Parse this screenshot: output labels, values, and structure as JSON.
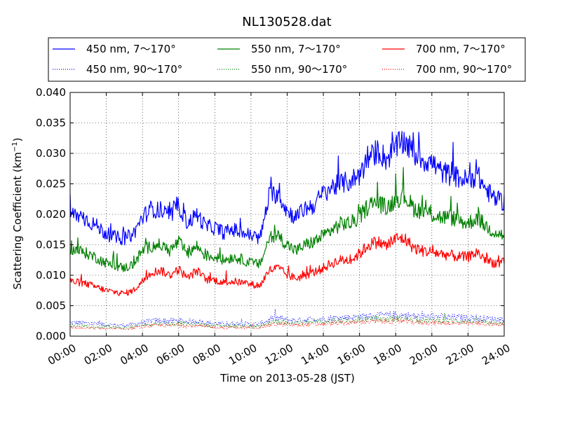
{
  "chart_data": {
    "type": "line",
    "title": "NL130528.dat",
    "xlabel": "Time on 2013-05-28 (JST)",
    "ylabel_prefix": "Scattering Coefficient (km",
    "ylabel_sup": "−1",
    "ylabel_suffix": ")",
    "x_unit": "hour of day (JST)",
    "xlim": [
      0,
      24
    ],
    "ylim": [
      0,
      0.04
    ],
    "xticks": [
      0,
      2,
      4,
      6,
      8,
      10,
      12,
      14,
      16,
      18,
      20,
      22,
      24
    ],
    "xtick_labels": [
      "00:00",
      "02:00",
      "04:00",
      "06:00",
      "08:00",
      "10:00",
      "12:00",
      "14:00",
      "16:00",
      "18:00",
      "20:00",
      "22:00",
      "24:00"
    ],
    "yticks": [
      0,
      0.005,
      0.01,
      0.015,
      0.02,
      0.025,
      0.03,
      0.035,
      0.04
    ],
    "ytick_labels": [
      "0.000",
      "0.005",
      "0.010",
      "0.015",
      "0.020",
      "0.025",
      "0.030",
      "0.035",
      "0.040"
    ],
    "grid": true,
    "legend_position": "top",
    "x": [
      0,
      0.5,
      1,
      1.5,
      2,
      2.5,
      3,
      3.5,
      4,
      4.5,
      5,
      5.5,
      6,
      6.5,
      7,
      7.5,
      8,
      8.5,
      9,
      9.5,
      10,
      10.5,
      11,
      11.5,
      12,
      12.5,
      13,
      13.5,
      14,
      14.5,
      15,
      15.5,
      16,
      16.5,
      17,
      17.5,
      18,
      18.5,
      19,
      19.5,
      20,
      20.5,
      21,
      21.5,
      22,
      22.5,
      23,
      23.5,
      24
    ],
    "series": [
      {
        "name": "450 nm, 7～170°",
        "color": "#0000ff",
        "style": "solid",
        "values": [
          0.02,
          0.0198,
          0.019,
          0.018,
          0.0168,
          0.0162,
          0.016,
          0.0168,
          0.0195,
          0.021,
          0.0205,
          0.0195,
          0.0215,
          0.0185,
          0.02,
          0.018,
          0.0178,
          0.017,
          0.0175,
          0.017,
          0.0165,
          0.016,
          0.023,
          0.0235,
          0.0205,
          0.0195,
          0.021,
          0.0215,
          0.0235,
          0.0245,
          0.025,
          0.0255,
          0.0265,
          0.029,
          0.0305,
          0.029,
          0.031,
          0.032,
          0.03,
          0.029,
          0.0285,
          0.027,
          0.0265,
          0.026,
          0.0255,
          0.0265,
          0.024,
          0.0225,
          0.022
        ]
      },
      {
        "name": "550 nm, 7～170°",
        "color": "#008000",
        "style": "solid",
        "values": [
          0.0143,
          0.014,
          0.0135,
          0.0128,
          0.012,
          0.0115,
          0.0112,
          0.0118,
          0.014,
          0.0148,
          0.015,
          0.014,
          0.0155,
          0.0135,
          0.0148,
          0.0132,
          0.013,
          0.0125,
          0.013,
          0.0126,
          0.012,
          0.0118,
          0.016,
          0.0165,
          0.015,
          0.014,
          0.015,
          0.0155,
          0.0165,
          0.0175,
          0.0185,
          0.0185,
          0.0195,
          0.0215,
          0.022,
          0.021,
          0.0225,
          0.023,
          0.021,
          0.0205,
          0.02,
          0.0195,
          0.0195,
          0.019,
          0.0185,
          0.0195,
          0.018,
          0.017,
          0.0165
        ]
      },
      {
        "name": "700 nm, 7～170°",
        "color": "#ff0000",
        "style": "solid",
        "values": [
          0.009,
          0.0088,
          0.0085,
          0.008,
          0.0075,
          0.0072,
          0.007,
          0.0075,
          0.009,
          0.0105,
          0.0108,
          0.01,
          0.011,
          0.0095,
          0.0108,
          0.0093,
          0.0092,
          0.0088,
          0.009,
          0.0088,
          0.0085,
          0.0083,
          0.0108,
          0.0112,
          0.01,
          0.0095,
          0.01,
          0.0105,
          0.0112,
          0.012,
          0.0125,
          0.0125,
          0.0135,
          0.015,
          0.0155,
          0.0148,
          0.016,
          0.016,
          0.0145,
          0.014,
          0.0138,
          0.0135,
          0.0133,
          0.013,
          0.013,
          0.0138,
          0.0125,
          0.012,
          0.012
        ]
      },
      {
        "name": "450 nm, 90～170°",
        "color": "#0000ff",
        "style": "dotted",
        "values": [
          0.0022,
          0.0022,
          0.0021,
          0.002,
          0.0019,
          0.0018,
          0.0018,
          0.0019,
          0.0022,
          0.0025,
          0.0026,
          0.0025,
          0.0026,
          0.0024,
          0.0025,
          0.0022,
          0.0021,
          0.002,
          0.0021,
          0.0021,
          0.002,
          0.002,
          0.0027,
          0.003,
          0.0027,
          0.0026,
          0.0027,
          0.0028,
          0.0028,
          0.003,
          0.003,
          0.0031,
          0.0032,
          0.0033,
          0.0034,
          0.0034,
          0.0035,
          0.0034,
          0.0033,
          0.0032,
          0.0032,
          0.0032,
          0.0031,
          0.0031,
          0.003,
          0.003,
          0.0029,
          0.0028,
          0.0028
        ]
      },
      {
        "name": "550 nm, 90～170°",
        "color": "#008000",
        "style": "dotted",
        "values": [
          0.0017,
          0.0017,
          0.0016,
          0.0015,
          0.0015,
          0.0014,
          0.0014,
          0.0015,
          0.0018,
          0.002,
          0.0021,
          0.002,
          0.0021,
          0.0019,
          0.002,
          0.0018,
          0.0017,
          0.0017,
          0.0017,
          0.0017,
          0.0016,
          0.0016,
          0.0022,
          0.0024,
          0.0022,
          0.0021,
          0.0022,
          0.0023,
          0.0023,
          0.0025,
          0.0025,
          0.0026,
          0.0027,
          0.0028,
          0.0028,
          0.0028,
          0.0029,
          0.0028,
          0.0027,
          0.0026,
          0.0026,
          0.0026,
          0.0025,
          0.0025,
          0.0024,
          0.0024,
          0.0023,
          0.0023,
          0.0022
        ]
      },
      {
        "name": "700 nm, 90～170°",
        "color": "#ff0000",
        "style": "dotted",
        "values": [
          0.0014,
          0.0014,
          0.0013,
          0.0013,
          0.0012,
          0.0012,
          0.0012,
          0.0013,
          0.0015,
          0.0017,
          0.0018,
          0.0017,
          0.0018,
          0.0016,
          0.0017,
          0.0015,
          0.0015,
          0.0014,
          0.0015,
          0.0014,
          0.0014,
          0.0014,
          0.0018,
          0.002,
          0.0019,
          0.0018,
          0.0019,
          0.0019,
          0.002,
          0.0021,
          0.0021,
          0.0022,
          0.0023,
          0.0024,
          0.0024,
          0.0024,
          0.0025,
          0.0024,
          0.0023,
          0.0022,
          0.0022,
          0.0022,
          0.0021,
          0.0021,
          0.0021,
          0.0021,
          0.002,
          0.0019,
          0.0019
        ]
      }
    ]
  }
}
